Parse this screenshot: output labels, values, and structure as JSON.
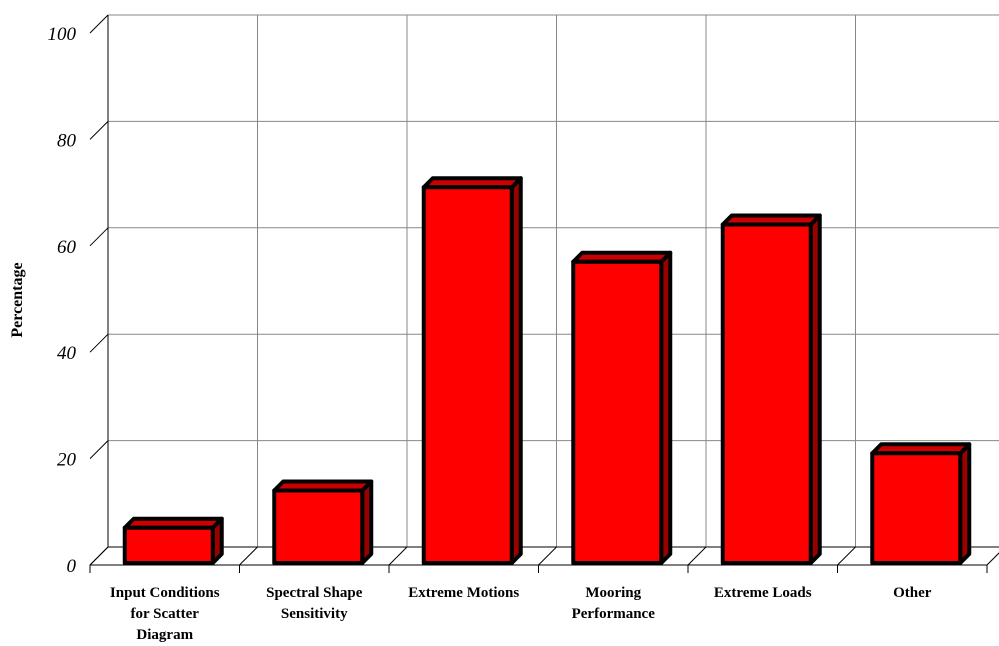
{
  "chart_data": {
    "type": "bar",
    "categories": [
      "Input Conditions for Scatter Diagram",
      "Spectral Shape Sensitivity",
      "Extreme Motions",
      "Mooring Performance",
      "Extreme Loads",
      "Other"
    ],
    "category_lines": [
      [
        "Input Conditions",
        "for Scatter",
        "Diagram"
      ],
      [
        "Spectral Shape",
        "Sensitivity"
      ],
      [
        "Extreme Motions"
      ],
      [
        "Mooring",
        "Performance"
      ],
      [
        "Extreme Loads"
      ],
      [
        "Other"
      ]
    ],
    "values": [
      7,
      14,
      71,
      57,
      64,
      21
    ],
    "ylabel": "Percentage",
    "xlabel": "",
    "ylim": [
      0,
      100
    ],
    "yticks": [
      0,
      20,
      40,
      60,
      80,
      100
    ],
    "grid": true,
    "three_d": true,
    "colors": {
      "bar_front": "#ff0000",
      "bar_side": "#990000",
      "bar_top": "#cc0000",
      "bar_outline": "#000000",
      "grid": "#888888",
      "axis": "#000000"
    }
  }
}
